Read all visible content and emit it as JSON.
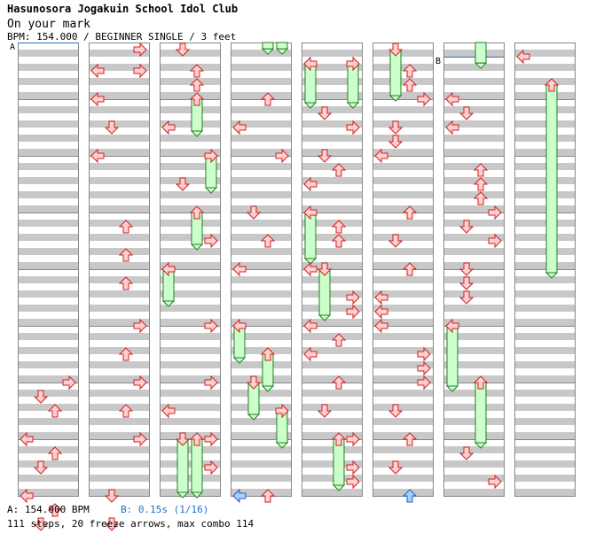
{
  "header": {
    "song_title": "Hasunosora Jogakuin School Idol Club",
    "song_subtitle": "On your mark",
    "chart_info": "BPM: 154.000 / BEGINNER SINGLE / 3 feet"
  },
  "footer": {
    "bpm_text": "A: 154.000 BPM",
    "stop_text": "B: 0.15s (1/16)",
    "stats_text": "111 steps, 20 freeze arrows, max combo 114"
  },
  "markers": {
    "a_label": "A",
    "b_label": "B",
    "a_column": 0,
    "a_beat": 0,
    "b_column": 6,
    "b_beat": 1
  },
  "colors": {
    "stripe": "#c8c8c8",
    "arrow_fill": "#ffd0d0",
    "arrow_stroke": "#d02020",
    "freeze_fill": "#ccffcc",
    "freeze_stroke": "#208020",
    "shock_fill": "#a8d0ff",
    "shock_stroke": "#2060c0",
    "marker_line": "#3070c0"
  },
  "chart_data": {
    "type": "step-chart",
    "columns": 8,
    "measures_per_column": 8,
    "beats_per_measure": 4,
    "lanes": [
      "left",
      "down",
      "up",
      "right"
    ],
    "notes": [
      {
        "col": 0,
        "beat": 24,
        "lane": "right"
      },
      {
        "col": 0,
        "beat": 25,
        "lane": "down"
      },
      {
        "col": 0,
        "beat": 26,
        "lane": "up"
      },
      {
        "col": 0,
        "beat": 28,
        "lane": "left"
      },
      {
        "col": 0,
        "beat": 29,
        "lane": "up"
      },
      {
        "col": 0,
        "beat": 30,
        "lane": "down"
      },
      {
        "col": 0,
        "beat": 32,
        "lane": "left"
      },
      {
        "col": 0,
        "beat": 33,
        "lane": "up"
      },
      {
        "col": 0,
        "beat": 34,
        "lane": "down"
      },
      {
        "col": 1,
        "beat": 0.5,
        "lane": "right"
      },
      {
        "col": 1,
        "beat": 2,
        "lane": "left"
      },
      {
        "col": 1,
        "beat": 2,
        "lane": "right"
      },
      {
        "col": 1,
        "beat": 4,
        "lane": "left"
      },
      {
        "col": 1,
        "beat": 6,
        "lane": "down"
      },
      {
        "col": 1,
        "beat": 8,
        "lane": "left"
      },
      {
        "col": 1,
        "beat": 13,
        "lane": "up"
      },
      {
        "col": 1,
        "beat": 15,
        "lane": "up"
      },
      {
        "col": 1,
        "beat": 17,
        "lane": "up"
      },
      {
        "col": 1,
        "beat": 20,
        "lane": "right"
      },
      {
        "col": 1,
        "beat": 22,
        "lane": "up"
      },
      {
        "col": 1,
        "beat": 24,
        "lane": "right"
      },
      {
        "col": 1,
        "beat": 26,
        "lane": "up"
      },
      {
        "col": 1,
        "beat": 28,
        "lane": "right"
      },
      {
        "col": 1,
        "beat": 32,
        "lane": "down"
      },
      {
        "col": 1,
        "beat": 34,
        "lane": "down"
      },
      {
        "col": 2,
        "beat": 0.5,
        "lane": "down"
      },
      {
        "col": 2,
        "beat": 2,
        "lane": "up"
      },
      {
        "col": 2,
        "beat": 3,
        "lane": "up"
      },
      {
        "col": 2,
        "beat": 6,
        "lane": "left"
      },
      {
        "col": 2,
        "beat": 10,
        "lane": "down"
      },
      {
        "col": 2,
        "beat": 14,
        "lane": "right"
      },
      {
        "col": 2,
        "beat": 20,
        "lane": "right"
      },
      {
        "col": 2,
        "beat": 24,
        "lane": "right"
      },
      {
        "col": 2,
        "beat": 26,
        "lane": "left"
      },
      {
        "col": 2,
        "beat": 28,
        "lane": "right"
      },
      {
        "col": 2,
        "beat": 30,
        "lane": "right"
      },
      {
        "col": 3,
        "beat": 4,
        "lane": "up"
      },
      {
        "col": 3,
        "beat": 6,
        "lane": "left"
      },
      {
        "col": 3,
        "beat": 8,
        "lane": "right"
      },
      {
        "col": 3,
        "beat": 12,
        "lane": "down"
      },
      {
        "col": 3,
        "beat": 14,
        "lane": "up"
      },
      {
        "col": 3,
        "beat": 16,
        "lane": "left"
      },
      {
        "col": 3,
        "beat": 32,
        "lane": "up"
      },
      {
        "col": 4,
        "beat": 1.5,
        "lane": "left"
      },
      {
        "col": 4,
        "beat": 1.5,
        "lane": "right"
      },
      {
        "col": 4,
        "beat": 5,
        "lane": "down"
      },
      {
        "col": 4,
        "beat": 6,
        "lane": "right"
      },
      {
        "col": 4,
        "beat": 8,
        "lane": "down"
      },
      {
        "col": 4,
        "beat": 9,
        "lane": "up"
      },
      {
        "col": 4,
        "beat": 10,
        "lane": "left"
      },
      {
        "col": 4,
        "beat": 13,
        "lane": "up"
      },
      {
        "col": 4,
        "beat": 14,
        "lane": "up"
      },
      {
        "col": 4,
        "beat": 16,
        "lane": "left"
      },
      {
        "col": 4,
        "beat": 18,
        "lane": "right"
      },
      {
        "col": 4,
        "beat": 19,
        "lane": "right"
      },
      {
        "col": 4,
        "beat": 20,
        "lane": "left"
      },
      {
        "col": 4,
        "beat": 21,
        "lane": "up"
      },
      {
        "col": 4,
        "beat": 22,
        "lane": "left"
      },
      {
        "col": 4,
        "beat": 24,
        "lane": "up"
      },
      {
        "col": 4,
        "beat": 26,
        "lane": "down"
      },
      {
        "col": 4,
        "beat": 28,
        "lane": "right"
      },
      {
        "col": 4,
        "beat": 30,
        "lane": "right"
      },
      {
        "col": 4,
        "beat": 31,
        "lane": "right"
      },
      {
        "col": 5,
        "beat": 2,
        "lane": "up"
      },
      {
        "col": 5,
        "beat": 3,
        "lane": "up"
      },
      {
        "col": 5,
        "beat": 4,
        "lane": "right"
      },
      {
        "col": 5,
        "beat": 6,
        "lane": "down"
      },
      {
        "col": 5,
        "beat": 7,
        "lane": "down"
      },
      {
        "col": 5,
        "beat": 8,
        "lane": "left"
      },
      {
        "col": 5,
        "beat": 12,
        "lane": "up"
      },
      {
        "col": 5,
        "beat": 14,
        "lane": "down"
      },
      {
        "col": 5,
        "beat": 16,
        "lane": "up"
      },
      {
        "col": 5,
        "beat": 18,
        "lane": "left"
      },
      {
        "col": 5,
        "beat": 19,
        "lane": "left"
      },
      {
        "col": 5,
        "beat": 20,
        "lane": "left"
      },
      {
        "col": 5,
        "beat": 22,
        "lane": "right"
      },
      {
        "col": 5,
        "beat": 23,
        "lane": "right"
      },
      {
        "col": 5,
        "beat": 24,
        "lane": "right"
      },
      {
        "col": 5,
        "beat": 26,
        "lane": "down"
      },
      {
        "col": 5,
        "beat": 28,
        "lane": "up"
      },
      {
        "col": 5,
        "beat": 30,
        "lane": "down"
      },
      {
        "col": 6,
        "beat": 4,
        "lane": "left"
      },
      {
        "col": 6,
        "beat": 5,
        "lane": "down"
      },
      {
        "col": 6,
        "beat": 6,
        "lane": "left"
      },
      {
        "col": 6,
        "beat": 9,
        "lane": "up"
      },
      {
        "col": 6,
        "beat": 10,
        "lane": "up"
      },
      {
        "col": 6,
        "beat": 11,
        "lane": "up"
      },
      {
        "col": 6,
        "beat": 12,
        "lane": "right"
      },
      {
        "col": 6,
        "beat": 13,
        "lane": "down"
      },
      {
        "col": 6,
        "beat": 14,
        "lane": "right"
      },
      {
        "col": 6,
        "beat": 16,
        "lane": "down"
      },
      {
        "col": 6,
        "beat": 17,
        "lane": "down"
      },
      {
        "col": 6,
        "beat": 18,
        "lane": "down"
      },
      {
        "col": 6,
        "beat": 29,
        "lane": "down"
      },
      {
        "col": 6,
        "beat": 31,
        "lane": "right"
      },
      {
        "col": 7,
        "beat": 1,
        "lane": "left"
      }
    ],
    "freezes": [
      {
        "col": 2,
        "lane": "up",
        "start": 4,
        "end": 6.5
      },
      {
        "col": 2,
        "lane": "right",
        "start": 8,
        "end": 10.5
      },
      {
        "col": 2,
        "lane": "up",
        "start": 12,
        "end": 14.5
      },
      {
        "col": 2,
        "lane": "left",
        "start": 16,
        "end": 18.5
      },
      {
        "col": 2,
        "lane": "down",
        "start": 28,
        "end": 32.5
      },
      {
        "col": 2,
        "lane": "up",
        "start": 28,
        "end": 32.5
      },
      {
        "col": 3,
        "lane": "up",
        "start": -0.5,
        "end": 0.7
      },
      {
        "col": 3,
        "lane": "right",
        "start": -0.5,
        "end": 0.7
      },
      {
        "col": 3,
        "lane": "left",
        "start": 20,
        "end": 22.5
      },
      {
        "col": 3,
        "lane": "up",
        "start": 22,
        "end": 24.5
      },
      {
        "col": 3,
        "lane": "down",
        "start": 24,
        "end": 26.5
      },
      {
        "col": 3,
        "lane": "right",
        "start": 26,
        "end": 28.5
      },
      {
        "col": 4,
        "lane": "left",
        "start": 1.5,
        "end": 4.5
      },
      {
        "col": 4,
        "lane": "right",
        "start": 1.5,
        "end": 4.5
      },
      {
        "col": 4,
        "lane": "left",
        "start": 12,
        "end": 15.5
      },
      {
        "col": 4,
        "lane": "down",
        "start": 16,
        "end": 19.5
      },
      {
        "col": 4,
        "lane": "up",
        "start": 28,
        "end": 31.5
      },
      {
        "col": 5,
        "lane": "down",
        "start": 0.5,
        "end": 4
      },
      {
        "col": 6,
        "lane": "up",
        "start": -0.5,
        "end": 1.7
      },
      {
        "col": 6,
        "lane": "left",
        "start": 20,
        "end": 24.5
      },
      {
        "col": 6,
        "lane": "up",
        "start": 24,
        "end": 28.5
      },
      {
        "col": 7,
        "lane": "up",
        "start": 3,
        "end": 16.5
      }
    ],
    "shocks": [
      {
        "col": 3,
        "beat": 32,
        "lane": "left"
      },
      {
        "col": 5,
        "beat": 32,
        "lane": "up"
      }
    ]
  }
}
